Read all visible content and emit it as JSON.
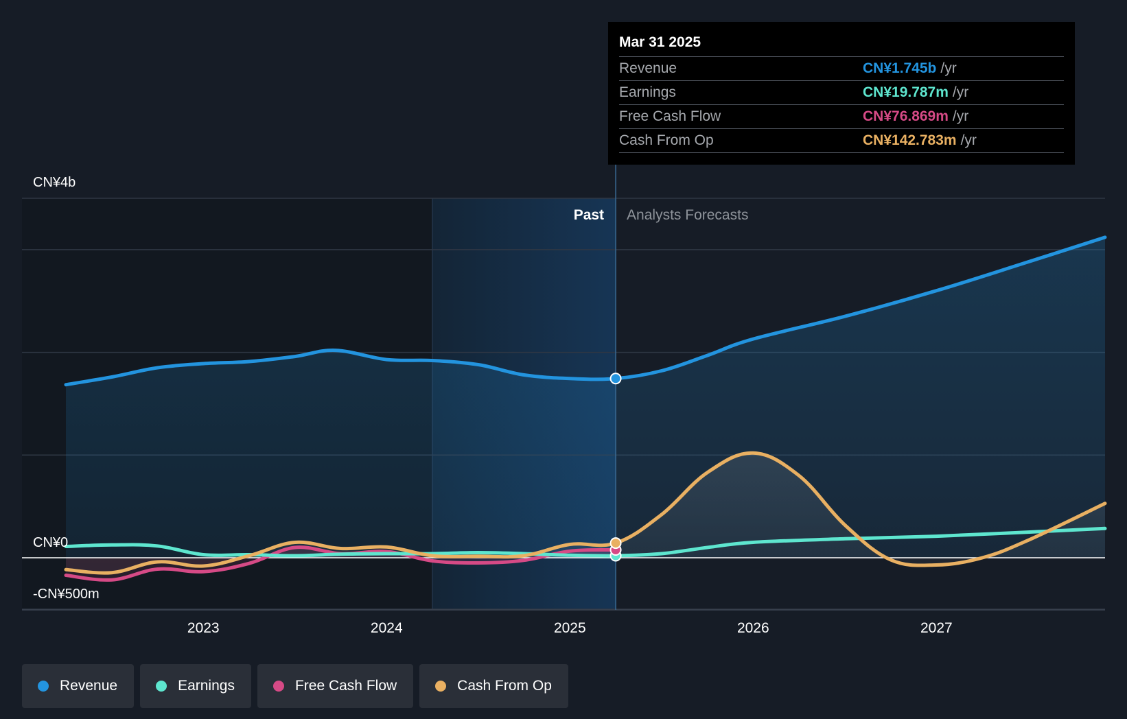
{
  "colors": {
    "background": "#161c26",
    "revenue": "#2394df",
    "earnings": "#5ee6cf",
    "free_cash_flow": "#d64a86",
    "cash_from_op": "#e9b062",
    "grid": "#2f3744",
    "zero_line": "#ffffff"
  },
  "tooltip": {
    "date": "Mar 31 2025",
    "rows": [
      {
        "label": "Revenue",
        "value": "CN¥1.745b",
        "unit": "/yr",
        "color": "#2394df"
      },
      {
        "label": "Earnings",
        "value": "CN¥19.787m",
        "unit": "/yr",
        "color": "#5ee6cf"
      },
      {
        "label": "Free Cash Flow",
        "value": "CN¥76.869m",
        "unit": "/yr",
        "color": "#d64a86"
      },
      {
        "label": "Cash From Op",
        "value": "CN¥142.783m",
        "unit": "/yr",
        "color": "#e9b062"
      }
    ]
  },
  "legend": [
    {
      "label": "Revenue",
      "color": "#2394df"
    },
    {
      "label": "Earnings",
      "color": "#5ee6cf"
    },
    {
      "label": "Free Cash Flow",
      "color": "#d64a86"
    },
    {
      "label": "Cash From Op",
      "color": "#e9b062"
    }
  ],
  "chart_data": {
    "type": "line",
    "title": "",
    "xlabel": "",
    "ylabel": "",
    "ylim": [
      -500,
      3500
    ],
    "xlim": [
      2022.25,
      2027.92
    ],
    "divider_x": 2025.25,
    "past_band_start": 2024.25,
    "past_label": "Past",
    "forecast_label": "Analysts Forecasts",
    "y_tick_labels": [
      {
        "value": 3500,
        "label": "CN¥4b"
      },
      {
        "value": 0,
        "label": "CN¥0"
      },
      {
        "value": -500,
        "label": "-CN¥500m"
      }
    ],
    "y_gridlines": [
      3500,
      3000,
      2000,
      1000,
      0,
      -500
    ],
    "x_tick_labels": [
      {
        "value": 2023,
        "label": "2023"
      },
      {
        "value": 2024,
        "label": "2024"
      },
      {
        "value": 2025,
        "label": "2025"
      },
      {
        "value": 2026,
        "label": "2026"
      },
      {
        "value": 2027,
        "label": "2027"
      }
    ],
    "series": [
      {
        "name": "Revenue",
        "key": "revenue",
        "color": "#2394df",
        "fill": true,
        "x": [
          2022.25,
          2022.5,
          2022.75,
          2023.0,
          2023.25,
          2023.5,
          2023.72,
          2024.0,
          2024.25,
          2024.5,
          2024.75,
          2025.0,
          2025.25,
          2025.5,
          2025.75,
          2026.0,
          2026.5,
          2027.0,
          2027.5,
          2027.92
        ],
        "y": [
          1685,
          1760,
          1850,
          1890,
          1910,
          1960,
          2020,
          1930,
          1920,
          1880,
          1780,
          1745,
          1745,
          1820,
          1970,
          2130,
          2350,
          2600,
          2880,
          3120
        ]
      },
      {
        "name": "Earnings",
        "key": "earnings",
        "color": "#5ee6cf",
        "fill": false,
        "x": [
          2022.25,
          2022.5,
          2022.75,
          2023.0,
          2023.25,
          2023.5,
          2023.75,
          2024.0,
          2024.25,
          2024.5,
          2024.75,
          2025.0,
          2025.25,
          2025.5,
          2025.75,
          2026.0,
          2026.5,
          2027.0,
          2027.5,
          2027.92
        ],
        "y": [
          110,
          125,
          115,
          30,
          30,
          20,
          35,
          40,
          40,
          50,
          40,
          25,
          20,
          40,
          100,
          150,
          185,
          210,
          250,
          285
        ]
      },
      {
        "name": "Free Cash Flow",
        "key": "free_cash_flow",
        "color": "#d64a86",
        "fill": false,
        "x": [
          2022.25,
          2022.5,
          2022.75,
          2023.0,
          2023.25,
          2023.5,
          2023.75,
          2024.0,
          2024.25,
          2024.5,
          2024.75,
          2025.0,
          2025.25
        ],
        "y": [
          -170,
          -215,
          -110,
          -135,
          -55,
          100,
          40,
          60,
          -30,
          -50,
          -25,
          65,
          77
        ]
      },
      {
        "name": "Cash From Op",
        "key": "cash_from_op",
        "color": "#e9b062",
        "fill": true,
        "x": [
          2022.25,
          2022.5,
          2022.75,
          2023.0,
          2023.25,
          2023.5,
          2023.75,
          2024.0,
          2024.25,
          2024.5,
          2024.75,
          2025.0,
          2025.25,
          2025.5,
          2025.75,
          2026.0,
          2026.25,
          2026.5,
          2026.75,
          2027.0,
          2027.25,
          2027.5,
          2027.92
        ],
        "y": [
          -115,
          -145,
          -40,
          -80,
          20,
          150,
          90,
          105,
          20,
          15,
          20,
          130,
          143,
          420,
          830,
          1020,
          800,
          320,
          -20,
          -70,
          0,
          170,
          530
        ]
      }
    ],
    "markers_at": 2025.25
  }
}
